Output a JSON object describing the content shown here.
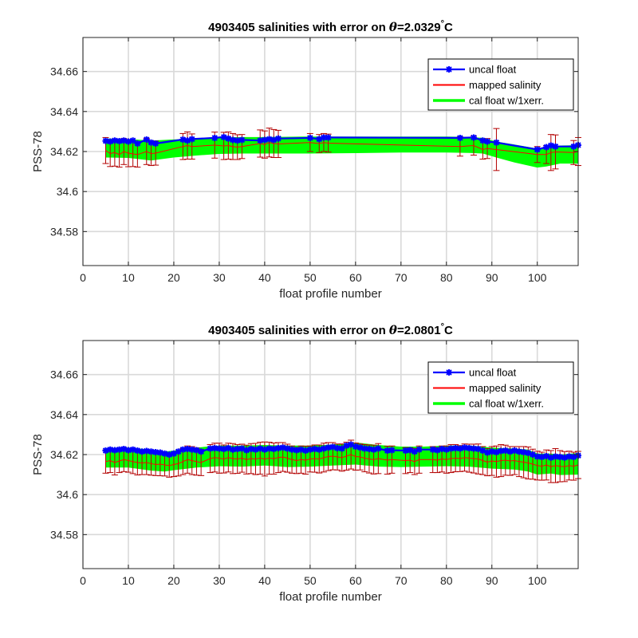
{
  "chart_data": [
    {
      "type": "line",
      "title_prefix": "4903405 salinities with error on ",
      "title_theta": "θ",
      "title_value": "=2.0329",
      "title_degree": "°",
      "title_unit": "C",
      "xlabel": "float profile number",
      "ylabel": "PSS-78",
      "xlim": [
        0,
        109
      ],
      "ylim": [
        34.563,
        34.677
      ],
      "xticks": [
        0,
        10,
        20,
        30,
        40,
        50,
        60,
        70,
        80,
        90,
        100
      ],
      "yticks": [
        34.58,
        34.6,
        34.62,
        34.64,
        34.66
      ],
      "grid": true,
      "legend_position": "top-right",
      "legend": [
        "uncal float",
        "mapped salinity",
        "cal float w/1xerr."
      ],
      "colors": {
        "uncal": "#0000ff",
        "mapped": "#ff0000",
        "errorbar": "#b30000",
        "cal": "#00ff00"
      },
      "x": [
        5,
        6,
        7,
        8,
        9,
        10,
        11,
        12,
        14,
        15,
        16,
        22,
        23,
        24,
        29,
        31,
        32,
        33,
        34,
        35,
        39,
        40,
        41,
        42,
        43,
        50,
        52,
        53,
        54,
        83,
        86,
        88,
        89,
        91,
        100,
        102,
        103,
        104,
        108,
        109
      ],
      "uncal": [
        34.6253,
        34.625,
        34.6255,
        34.6252,
        34.6255,
        34.625,
        34.6255,
        34.624,
        34.626,
        34.6245,
        34.624,
        34.626,
        34.6255,
        34.6262,
        34.6268,
        34.6272,
        34.6265,
        34.6258,
        34.6255,
        34.6258,
        34.6255,
        34.6258,
        34.6262,
        34.6258,
        34.6265,
        34.6268,
        34.6262,
        34.627,
        34.627,
        34.6268,
        34.627,
        34.6255,
        34.625,
        34.6245,
        34.621,
        34.6222,
        34.623,
        34.6225,
        34.6225,
        34.6232
      ],
      "mapped": [
        34.6205,
        34.619,
        34.6195,
        34.6185,
        34.62,
        34.6192,
        34.6188,
        34.6185,
        34.62,
        34.619,
        34.6192,
        34.6225,
        34.623,
        34.6225,
        34.6232,
        34.6228,
        34.623,
        34.6225,
        34.6222,
        34.6225,
        34.624,
        34.6235,
        34.6245,
        34.624,
        34.6238,
        34.6245,
        34.624,
        34.6245,
        34.6242,
        34.6225,
        34.623,
        34.621,
        34.6215,
        34.621,
        34.6185,
        34.6185,
        34.6195,
        34.6198,
        34.6195,
        34.62
      ],
      "mapped_err": [
        0.0065,
        0.0065,
        0.0068,
        0.0063,
        0.0065,
        0.0068,
        0.0063,
        0.0063,
        0.0065,
        0.006,
        0.006,
        0.0065,
        0.0068,
        0.0063,
        0.0065,
        0.0068,
        0.0068,
        0.0065,
        0.0062,
        0.006,
        0.0068,
        0.0068,
        0.0072,
        0.007,
        0.0068,
        0.0045,
        0.0045,
        0.0045,
        0.0045,
        0.0048,
        0.0048,
        0.0048,
        0.005,
        0.0105,
        0.004,
        0.0045,
        0.009,
        0.0085,
        0.006,
        0.007
      ],
      "cal_x": [
        5,
        10,
        15,
        20,
        25,
        30,
        35,
        40,
        50,
        60,
        70,
        80,
        85,
        88,
        91,
        95,
        100,
        102,
        105,
        109
      ],
      "cal_low": [
        34.617,
        34.6168,
        34.6155,
        34.617,
        34.618,
        34.6188,
        34.619,
        34.619,
        34.619,
        34.6192,
        34.6195,
        34.6195,
        34.6193,
        34.619,
        34.617,
        34.6145,
        34.612,
        34.6125,
        34.614,
        34.614
      ],
      "cal_high": [
        34.6265,
        34.6262,
        34.6255,
        34.626,
        34.6265,
        34.627,
        34.6272,
        34.6272,
        34.6275,
        34.6275,
        34.6275,
        34.6275,
        34.6273,
        34.6268,
        34.625,
        34.6235,
        34.6215,
        34.6218,
        34.623,
        34.6232
      ]
    },
    {
      "type": "line",
      "title_prefix": "4903405 salinities with error on ",
      "title_theta": "θ",
      "title_value": "=2.0801",
      "title_degree": "°",
      "title_unit": "C",
      "xlabel": "float profile number",
      "ylabel": "PSS-78",
      "xlim": [
        0,
        109
      ],
      "ylim": [
        34.563,
        34.677
      ],
      "xticks": [
        0,
        10,
        20,
        30,
        40,
        50,
        60,
        70,
        80,
        90,
        100
      ],
      "yticks": [
        34.58,
        34.6,
        34.62,
        34.64,
        34.66
      ],
      "grid": true,
      "legend_position": "top-right",
      "legend": [
        "uncal float",
        "mapped salinity",
        "cal float w/1xerr."
      ],
      "colors": {
        "uncal": "#0000ff",
        "mapped": "#ff0000",
        "errorbar": "#b30000",
        "cal": "#00ff00"
      },
      "x": [
        5,
        6,
        7,
        8,
        9,
        10,
        11,
        12,
        13,
        14,
        15,
        16,
        17,
        18,
        19,
        20,
        21,
        22,
        23,
        24,
        25,
        26,
        28,
        29,
        30,
        31,
        32,
        33,
        34,
        35,
        36,
        37,
        38,
        39,
        40,
        41,
        42,
        43,
        44,
        45,
        46,
        47,
        48,
        49,
        50,
        51,
        52,
        53,
        54,
        55,
        56,
        57,
        58,
        59,
        60,
        61,
        62,
        63,
        64,
        65,
        67,
        68,
        71,
        72,
        73,
        74,
        77,
        78,
        79,
        80,
        81,
        82,
        83,
        84,
        85,
        86,
        87,
        88,
        89,
        90,
        91,
        92,
        93,
        94,
        95,
        96,
        97,
        98,
        99,
        100,
        101,
        102,
        103,
        104,
        105,
        106,
        107,
        108,
        109
      ],
      "uncal": [
        34.622,
        34.6225,
        34.6222,
        34.6225,
        34.6228,
        34.6222,
        34.6225,
        34.622,
        34.6215,
        34.6218,
        34.6215,
        34.6212,
        34.621,
        34.6205,
        34.62,
        34.6205,
        34.6215,
        34.6225,
        34.6228,
        34.6225,
        34.6222,
        34.6215,
        34.623,
        34.6232,
        34.623,
        34.6228,
        34.6232,
        34.6225,
        34.6228,
        34.623,
        34.6222,
        34.6228,
        34.6225,
        34.623,
        34.6225,
        34.623,
        34.6228,
        34.6232,
        34.6235,
        34.623,
        34.6225,
        34.6222,
        34.6225,
        34.622,
        34.6225,
        34.6228,
        34.6225,
        34.623,
        34.6235,
        34.6238,
        34.6232,
        34.623,
        34.6245,
        34.625,
        34.624,
        34.6235,
        34.623,
        34.6228,
        34.6225,
        34.623,
        34.622,
        34.6222,
        34.622,
        34.6222,
        34.6215,
        34.6225,
        34.6225,
        34.6222,
        34.6228,
        34.6225,
        34.623,
        34.6232,
        34.623,
        34.6235,
        34.6232,
        34.623,
        34.6228,
        34.622,
        34.621,
        34.6215,
        34.6212,
        34.6218,
        34.622,
        34.6215,
        34.622,
        34.6215,
        34.6212,
        34.6208,
        34.62,
        34.619,
        34.6188,
        34.6192,
        34.6185,
        34.619,
        34.6188,
        34.6185,
        34.619,
        34.6188,
        34.6195
      ],
      "mapped": [
        34.6165,
        34.617,
        34.616,
        34.6168,
        34.6175,
        34.617,
        34.6165,
        34.616,
        34.6158,
        34.616,
        34.6155,
        34.615,
        34.6152,
        34.6148,
        34.6145,
        34.615,
        34.6155,
        34.6165,
        34.6175,
        34.617,
        34.6165,
        34.616,
        34.618,
        34.6185,
        34.6182,
        34.6178,
        34.6185,
        34.618,
        34.6178,
        34.6182,
        34.6175,
        34.618,
        34.6178,
        34.6182,
        34.6178,
        34.6182,
        34.618,
        34.6185,
        34.6188,
        34.6182,
        34.6175,
        34.617,
        34.6175,
        34.6172,
        34.6178,
        34.618,
        34.6178,
        34.6185,
        34.619,
        34.6192,
        34.6188,
        34.6185,
        34.6192,
        34.62,
        34.619,
        34.6188,
        34.6182,
        34.6178,
        34.6175,
        34.618,
        34.6172,
        34.6175,
        34.617,
        34.6172,
        34.6165,
        34.6175,
        34.6175,
        34.6172,
        34.6178,
        34.6175,
        34.618,
        34.6182,
        34.618,
        34.6185,
        34.6182,
        34.618,
        34.6178,
        34.617,
        34.6162,
        34.6168,
        34.6165,
        34.617,
        34.6172,
        34.6168,
        34.617,
        34.6165,
        34.6162,
        34.6158,
        34.6152,
        34.6145,
        34.6142,
        34.6148,
        34.614,
        34.6145,
        34.6142,
        34.614,
        34.6145,
        34.6142,
        34.6148
      ],
      "mapped_err": [
        0.0058,
        0.006,
        0.0062,
        0.0058,
        0.006,
        0.0058,
        0.006,
        0.0062,
        0.0058,
        0.006,
        0.0058,
        0.0055,
        0.0058,
        0.0055,
        0.0058,
        0.006,
        0.0062,
        0.0065,
        0.0068,
        0.007,
        0.0068,
        0.0065,
        0.007,
        0.0072,
        0.0075,
        0.007,
        0.0072,
        0.0075,
        0.0072,
        0.007,
        0.0072,
        0.0075,
        0.0078,
        0.008,
        0.0085,
        0.008,
        0.0078,
        0.0075,
        0.0072,
        0.007,
        0.0068,
        0.0065,
        0.0068,
        0.007,
        0.0065,
        0.0068,
        0.007,
        0.0072,
        0.007,
        0.0068,
        0.0065,
        0.0068,
        0.007,
        0.0072,
        0.0068,
        0.0065,
        0.0068,
        0.007,
        0.0072,
        0.0075,
        0.007,
        0.0068,
        0.0065,
        0.0062,
        0.0065,
        0.0068,
        0.0065,
        0.0062,
        0.0065,
        0.0068,
        0.007,
        0.0068,
        0.0065,
        0.0068,
        0.007,
        0.0072,
        0.0075,
        0.007,
        0.0068,
        0.0072,
        0.0078,
        0.008,
        0.0075,
        0.0072,
        0.007,
        0.0075,
        0.0078,
        0.008,
        0.0075,
        0.0072,
        0.007,
        0.0075,
        0.008,
        0.0085,
        0.0078,
        0.0075,
        0.0072,
        0.007,
        0.0068
      ],
      "cal_x": [
        5,
        10,
        15,
        18,
        20,
        25,
        30,
        35,
        40,
        45,
        50,
        55,
        60,
        65,
        70,
        75,
        80,
        85,
        90,
        95,
        98,
        100,
        103,
        105,
        109
      ],
      "cal_low": [
        34.6135,
        34.6135,
        34.612,
        34.6115,
        34.6122,
        34.6135,
        34.6142,
        34.614,
        34.6145,
        34.6138,
        34.614,
        34.6145,
        34.615,
        34.614,
        34.6138,
        34.614,
        34.6142,
        34.614,
        34.613,
        34.6125,
        34.6115,
        34.61,
        34.6105,
        34.6098,
        34.61
      ],
      "cal_high": [
        34.6232,
        34.6235,
        34.6225,
        34.6215,
        34.622,
        34.6235,
        34.6245,
        34.6245,
        34.6248,
        34.6245,
        34.6245,
        34.625,
        34.626,
        34.6248,
        34.624,
        34.624,
        34.6245,
        34.6245,
        34.6235,
        34.623,
        34.6225,
        34.6205,
        34.6205,
        34.62,
        34.6208
      ]
    }
  ]
}
